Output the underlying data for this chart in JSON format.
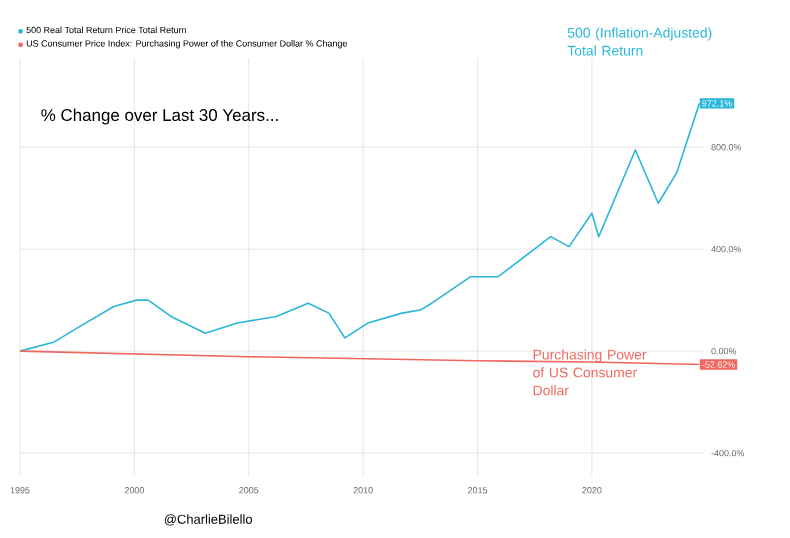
{
  "chart_data": {
    "type": "line",
    "title": "% Change over Last 30 Years...",
    "series": [
      {
        "name": "500 Real Total Return Price Total Return",
        "color": "#29b6d8",
        "x": [
          1995.0,
          1996.5,
          1997.6,
          1999.1,
          2000.1,
          2000.6,
          2001.6,
          2003.1,
          2004.5,
          2006.2,
          2007.6,
          2008.5,
          2009.2,
          2010.2,
          2011.7,
          2012.5,
          2013.0,
          2014.7,
          2015.9,
          2018.2,
          2019.0,
          2020.0,
          2020.3,
          2021.9,
          2022.9,
          2023.7,
          2024.7
        ],
        "values": [
          0,
          36,
          96,
          175,
          200,
          200,
          136,
          70,
          110,
          136,
          188,
          149,
          52,
          110,
          149,
          161,
          188,
          292,
          292,
          449,
          410,
          541,
          449,
          789,
          580,
          698,
          972.1
        ],
        "value_labels": [
          null,
          null,
          null,
          null,
          null,
          null,
          null,
          null,
          null,
          null,
          null,
          null,
          null,
          null,
          null,
          null,
          null,
          null,
          null,
          null,
          null,
          null,
          null,
          null,
          null,
          null,
          "972.1%"
        ]
      },
      {
        "name": "US Consumer Price Index: Purchasing Power of the Consumer Dollar % Change",
        "color": "#f0675e",
        "x": [
          1995.0,
          2005.0,
          2015.0,
          2020.0,
          2024.7
        ],
        "values": [
          0,
          -22,
          -38,
          -43,
          -52.62
        ],
        "value_labels": [
          null,
          null,
          null,
          null,
          "-52.62%"
        ]
      }
    ],
    "xlim": [
      1995,
      2024.9
    ],
    "xticks": [
      1995,
      2000,
      2005,
      2010,
      2015,
      2020
    ],
    "ylim": [
      -490,
      1150
    ],
    "yticks": [
      {
        "value": -400,
        "label": "-400.0%"
      },
      {
        "value": 0,
        "label": "0.00%"
      },
      {
        "value": 400,
        "label": "400.0%"
      },
      {
        "value": 800,
        "label": "800.0%"
      }
    ],
    "grid": true,
    "legend": "top left",
    "marker": "none",
    "line_style": "solid",
    "annotations": [
      "500 (Inflation-Adjusted) Total Return",
      "Purchasing Power of US Consumer Dollar",
      "@CharlieBilello"
    ]
  }
}
